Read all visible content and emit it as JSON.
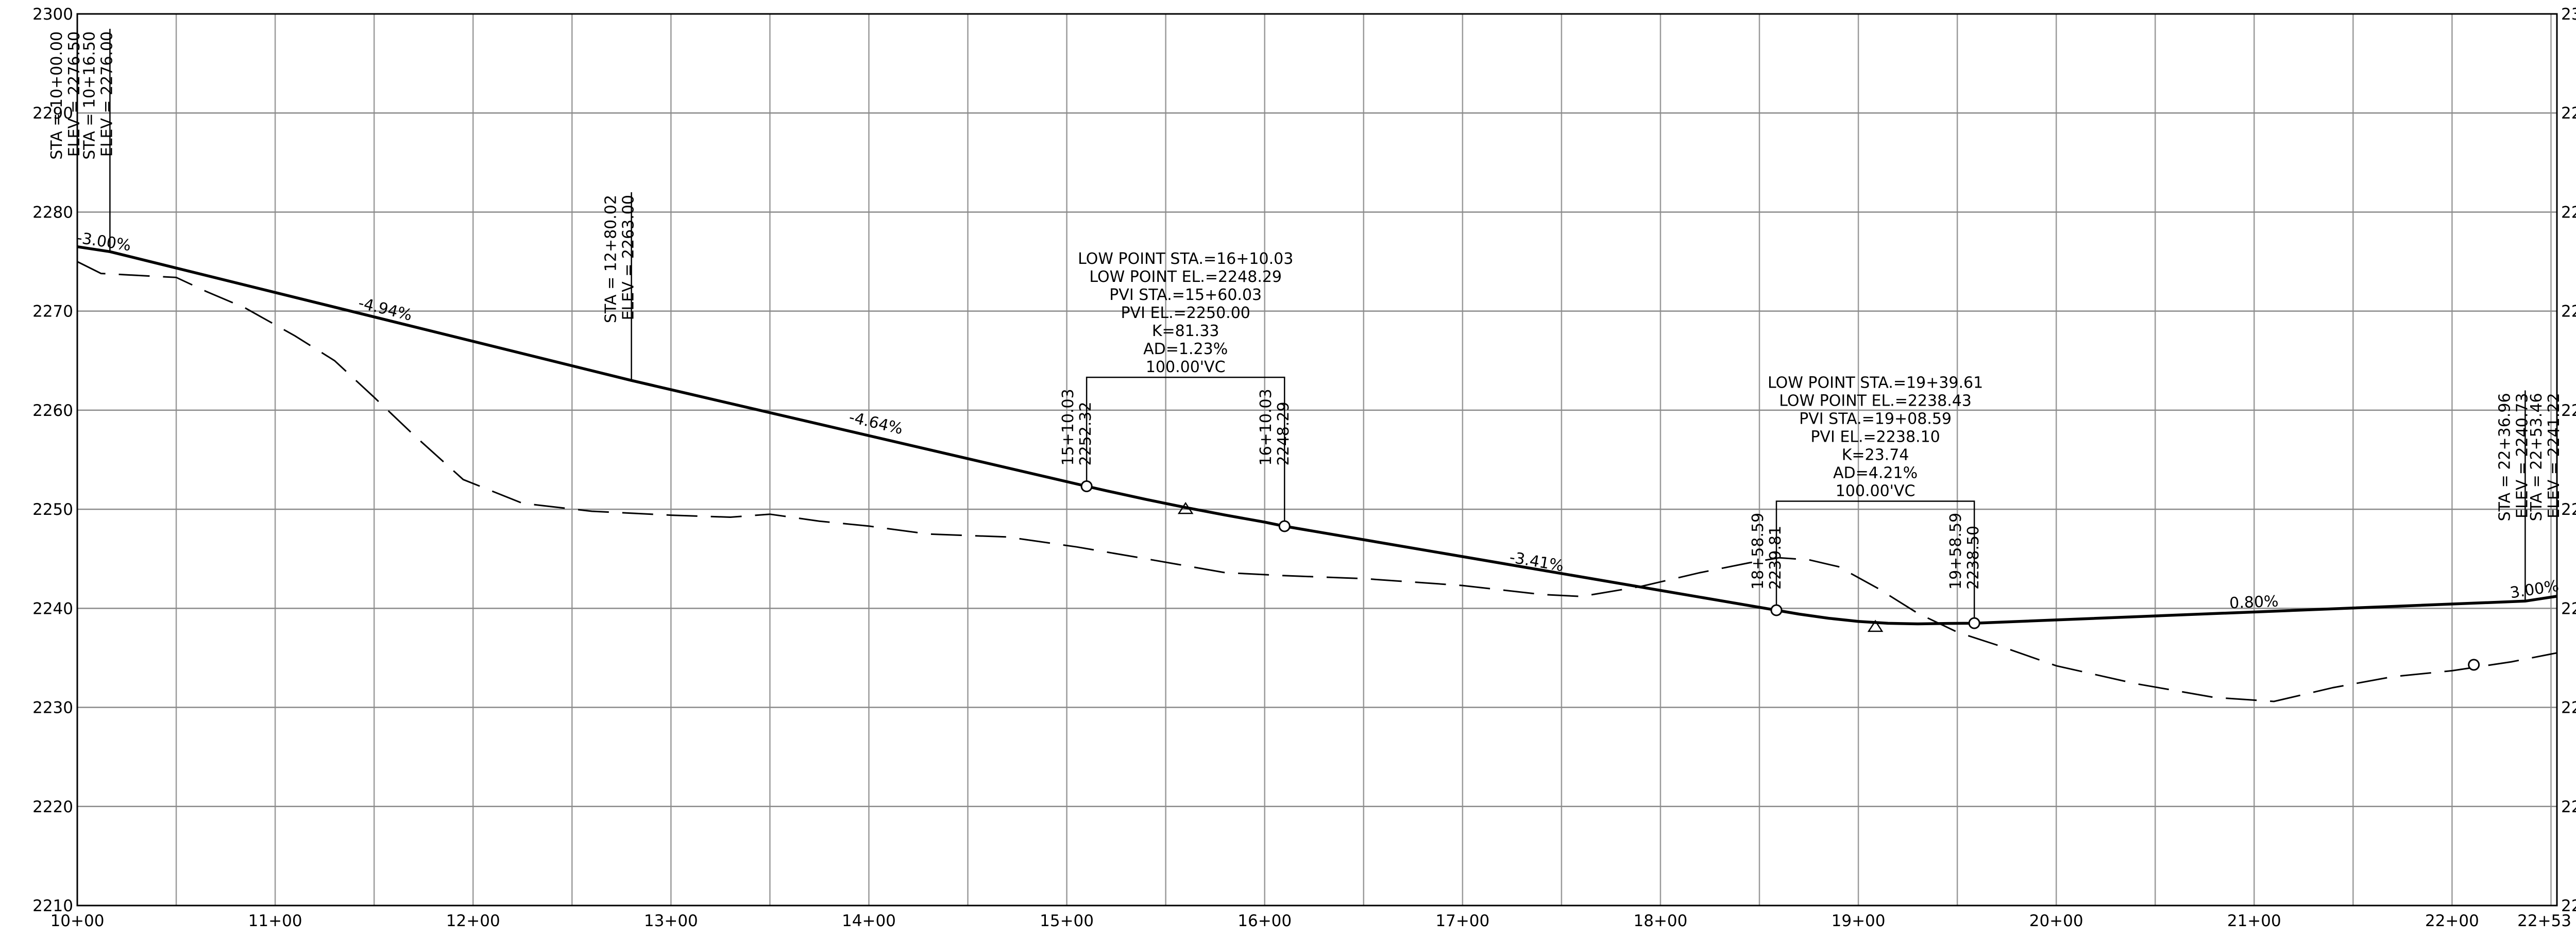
{
  "chart_data": {
    "type": "line",
    "title": "",
    "xlabel": "",
    "ylabel": "",
    "xlim": [
      1000,
      2253
    ],
    "ylim": [
      2210,
      2300
    ],
    "grid": true,
    "x_ticks": [
      {
        "sta": 1000,
        "label": "10+00"
      },
      {
        "sta": 1100,
        "label": "11+00"
      },
      {
        "sta": 1200,
        "label": "12+00"
      },
      {
        "sta": 1300,
        "label": "13+00"
      },
      {
        "sta": 1400,
        "label": "14+00"
      },
      {
        "sta": 1500,
        "label": "15+00"
      },
      {
        "sta": 1600,
        "label": "16+00"
      },
      {
        "sta": 1700,
        "label": "17+00"
      },
      {
        "sta": 1800,
        "label": "18+00"
      },
      {
        "sta": 1900,
        "label": "19+00"
      },
      {
        "sta": 2000,
        "label": "20+00"
      },
      {
        "sta": 2100,
        "label": "21+00"
      },
      {
        "sta": 2200,
        "label": "22+00"
      },
      {
        "sta": 2253,
        "label": "22+53"
      }
    ],
    "y_ticks": [
      2210,
      2220,
      2230,
      2240,
      2250,
      2260,
      2270,
      2280,
      2290,
      2300
    ],
    "series": [
      {
        "style": "dashed",
        "x": [
          1000,
          1012,
          1050,
          1065,
          1085,
          1110,
          1130,
          1150,
          1170,
          1195,
          1225,
          1260,
          1300,
          1330,
          1350,
          1375,
          1400,
          1430,
          1470,
          1505,
          1540,
          1580,
          1610,
          1650,
          1700,
          1740,
          1760,
          1790,
          1820,
          1845,
          1860,
          1875,
          1890,
          1910,
          1930,
          1950,
          1970,
          2000,
          2040,
          2080,
          2110,
          2140,
          2170,
          2200,
          2230,
          2253
        ],
        "y": [
          2275.0,
          2273.8,
          2273.4,
          2272.0,
          2270.3,
          2267.5,
          2265.0,
          2261.3,
          2257.5,
          2253.0,
          2250.6,
          2249.8,
          2249.4,
          2249.2,
          2249.5,
          2248.8,
          2248.3,
          2247.5,
          2247.2,
          2246.2,
          2245.0,
          2243.6,
          2243.3,
          2243.0,
          2242.3,
          2241.4,
          2241.2,
          2242.2,
          2243.6,
          2244.6,
          2245.1,
          2244.9,
          2244.2,
          2242.0,
          2239.5,
          2237.6,
          2236.3,
          2234.2,
          2232.4,
          2231.0,
          2230.6,
          2232.0,
          2233.1,
          2233.7,
          2234.6,
          2235.5
        ]
      },
      {
        "style": "solid",
        "x": [
          1000,
          1016.5,
          1280.02,
          1510.03,
          1520,
          1540,
          1560,
          1580,
          1600,
          1610.03,
          1858.59,
          1870,
          1885,
          1900,
          1915,
          1930,
          1945,
          1958.59,
          2236.96,
          2253
        ],
        "y": [
          2276.5,
          2276.0,
          2263.0,
          2252.32,
          2251.87,
          2251.0,
          2250.18,
          2249.42,
          2248.7,
          2248.29,
          2239.81,
          2239.42,
          2239.0,
          2238.68,
          2238.49,
          2238.43,
          2238.48,
          2238.5,
          2240.73,
          2241.22
        ]
      }
    ],
    "slope_labels": [
      {
        "text": "-3.00%",
        "sta": 1013,
        "elev": 2276.5
      },
      {
        "text": "-4.94%",
        "sta": 1155,
        "elev": 2269.7
      },
      {
        "text": "-4.64%",
        "sta": 1403,
        "elev": 2258.2
      },
      {
        "text": "-3.41%",
        "sta": 1737,
        "elev": 2244.2
      },
      {
        "text": "0.80%",
        "sta": 2100,
        "elev": 2240.1
      },
      {
        "text": "3.00%",
        "sta": 2242,
        "elev": 2241.4
      }
    ],
    "vc_curves": [
      {
        "bvc_sta": 1510.03,
        "bvc_elev": 2252.32,
        "evc_sta": 1610.03,
        "evc_elev": 2248.29,
        "pvi_sta": 1560.03,
        "pvi_elev": 2250.0,
        "bvc_label": [
          "15+10.03",
          "2252.32"
        ],
        "evc_label": [
          "16+10.03",
          "2248.29"
        ],
        "info": [
          "LOW POINT STA.=16+10.03",
          "LOW POINT EL.=2248.29",
          "PVI STA.=15+60.03",
          "PVI EL.=2250.00",
          "K=81.33",
          "AD=1.23%",
          "100.00'VC"
        ]
      },
      {
        "bvc_sta": 1858.59,
        "bvc_elev": 2239.81,
        "evc_sta": 1958.59,
        "evc_elev": 2238.5,
        "pvi_sta": 1908.59,
        "pvi_elev": 2238.1,
        "bvc_label": [
          "18+58.59",
          "2239.81"
        ],
        "evc_label": [
          "19+58.59",
          "2238.50"
        ],
        "info": [
          "LOW POINT STA.=19+39.61",
          "LOW POINT EL.=2238.43",
          "PVI STA.=19+08.59",
          "PVI EL.=2238.10",
          "K=23.74",
          "AD=4.21%",
          "100.00'VC"
        ]
      }
    ],
    "station_callouts": [
      {
        "sta": 1000,
        "elev": 2276.5,
        "top": 2298.5,
        "lines": [
          "STA = 10+00.00",
          "ELEV = 2276.50"
        ]
      },
      {
        "sta": 1016.5,
        "elev": 2276.0,
        "top": 2298.5,
        "lines": [
          "STA = 10+16.50",
          "ELEV = 2276.00"
        ]
      },
      {
        "sta": 1280.02,
        "elev": 2263.0,
        "top": 2282.0,
        "lines": [
          "STA = 12+80.02",
          "ELEV = 2263.00"
        ]
      },
      {
        "sta": 2236.96,
        "elev": 2240.73,
        "top": 2262.0,
        "lines": [
          "STA = 22+36.96",
          "ELEV = 2240.73"
        ]
      },
      {
        "sta": 2253,
        "elev": 2241.22,
        "top": 2262.0,
        "lines": [
          "STA = 22+53.46",
          "ELEV = 2241.22"
        ]
      }
    ],
    "extra_marker": {
      "sta": 2211,
      "elev": 2234.3
    }
  }
}
